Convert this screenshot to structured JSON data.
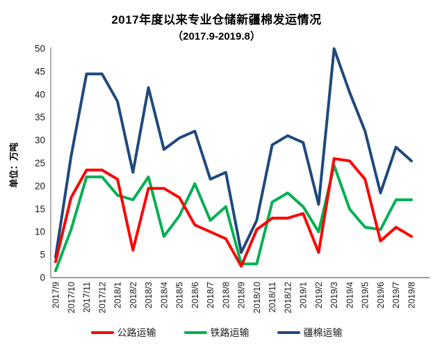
{
  "chart_data": {
    "type": "line",
    "title": "2017年度以来专业仓储新疆棉发运情况",
    "subtitle": "（2017.9-2019.8）",
    "ylabel": "单位：万吨",
    "xlabel": "",
    "grid": false,
    "legend_position": "bottom",
    "ylim": [
      0,
      50
    ],
    "ytick_step": 5,
    "ytick_labels": [
      "0",
      "5",
      "10",
      "15",
      "20",
      "25",
      "30",
      "35",
      "40",
      "45",
      "50"
    ],
    "categories": [
      "2017/9",
      "2017/10",
      "2017/11",
      "2017/12",
      "2018/1",
      "2018/2",
      "2018/3",
      "2018/4",
      "2018/5",
      "2018/6",
      "2018/7",
      "2018/8",
      "2018/9",
      "2018/10",
      "2018/11",
      "2018/12",
      "2019/1",
      "2019/2",
      "2019/3",
      "2019/4",
      "2019/5",
      "2019/6",
      "2019/7",
      "2019/8"
    ],
    "series": [
      {
        "name": "公路运输",
        "color": "#FF0000",
        "values": [
          3.5,
          17.5,
          23.5,
          23.5,
          21.5,
          6,
          19.5,
          19.5,
          17.5,
          11.5,
          10,
          8.5,
          2.5,
          10.5,
          13,
          13,
          14,
          5.5,
          26,
          25.5,
          21.5,
          8,
          11,
          9
        ]
      },
      {
        "name": "铁路运输",
        "color": "#00B050",
        "values": [
          1.5,
          10.5,
          22,
          22,
          18,
          17,
          22,
          9,
          13.5,
          20.5,
          12.5,
          15.5,
          3,
          3,
          16.5,
          18.5,
          15.5,
          10,
          24.5,
          15,
          11,
          10.5,
          17,
          17
        ]
      },
      {
        "name": "疆棉运输",
        "color": "#1F497D",
        "values": [
          4.5,
          26.5,
          44.5,
          44.5,
          38.5,
          23,
          41.5,
          28,
          30.5,
          32,
          21.5,
          23,
          5.5,
          12.5,
          29,
          31,
          29.5,
          16,
          50,
          40.5,
          32,
          18.5,
          28.5,
          25.5
        ]
      }
    ],
    "axis_color": "#9B9B9B",
    "tick_label_color": "#1a1a1a"
  }
}
